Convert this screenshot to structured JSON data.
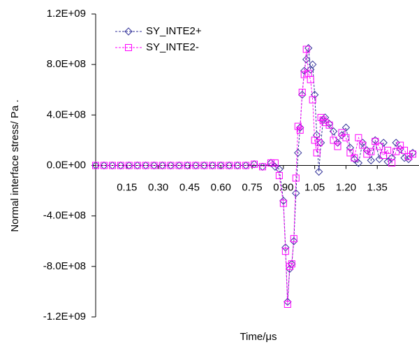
{
  "chart_data": {
    "type": "line",
    "y_label": "Normal interface stress/ Pa .",
    "x_label": "Time/μs",
    "legend": "upper left",
    "xlim": [
      0,
      1.55
    ],
    "xticks": [
      0.15,
      {
        "value": 0.3,
        "label": "0.30"
      },
      0.45,
      {
        "value": 0.6,
        "label": "0.60"
      },
      0.75,
      {
        "value": 0.9,
        "label": "0.90"
      },
      1.05,
      {
        "value": 1.2,
        "label": "1.20"
      },
      1.35
    ],
    "ylim": [
      -1200000000,
      1200000000
    ],
    "yticks": [
      {
        "value": -1200000000,
        "label": "-1.2E+09"
      },
      {
        "value": -800000000,
        "label": "-8.0E+08"
      },
      {
        "value": -400000000,
        "label": "-4.0E+08"
      },
      {
        "value": 0,
        "label": "0.0E+00"
      },
      {
        "value": 400000000,
        "label": "4.0E+08"
      },
      {
        "value": 800000000,
        "label": "8.0E+08"
      },
      {
        "value": 1200000000,
        "label": "1.2E+09"
      }
    ],
    "x": [
      0,
      0.04,
      0.08,
      0.12,
      0.16,
      0.2,
      0.24,
      0.28,
      0.32,
      0.36,
      0.4,
      0.44,
      0.48,
      0.52,
      0.56,
      0.6,
      0.64,
      0.68,
      0.72,
      0.76,
      0.8,
      0.84,
      0.86,
      0.88,
      0.9,
      0.91,
      0.92,
      0.93,
      0.94,
      0.95,
      0.96,
      0.97,
      0.98,
      0.99,
      1.0,
      1.01,
      1.02,
      1.03,
      1.04,
      1.05,
      1.06,
      1.07,
      1.08,
      1.09,
      1.1,
      1.12,
      1.14,
      1.16,
      1.18,
      1.2,
      1.22,
      1.24,
      1.26,
      1.28,
      1.3,
      1.32,
      1.34,
      1.36,
      1.38,
      1.4,
      1.42,
      1.44,
      1.46,
      1.48,
      1.5,
      1.52
    ],
    "series": [
      {
        "name": "SY_INTE2+",
        "color": "#333399",
        "marker": "diamond",
        "values": [
          0,
          0,
          0,
          0,
          0,
          0,
          0,
          0,
          0,
          0,
          0,
          0,
          0,
          0,
          0,
          0,
          0,
          0,
          0,
          10000000.0,
          -10000000.0,
          20000000.0,
          -10000000.0,
          -30000000.0,
          -280000000.0,
          -650000000.0,
          -1080000000.0,
          -820000000.0,
          -780000000.0,
          -600000000.0,
          -220000000.0,
          100000000.0,
          300000000.0,
          560000000.0,
          750000000.0,
          840000000.0,
          930000000.0,
          760000000.0,
          800000000.0,
          560000000.0,
          240000000.0,
          -50000000.0,
          180000000.0,
          360000000.0,
          380000000.0,
          330000000.0,
          270000000.0,
          180000000.0,
          240000000.0,
          300000000.0,
          140000000.0,
          50000000.0,
          20000000.0,
          180000000.0,
          120000000.0,
          40000000.0,
          200000000.0,
          50000000.0,
          180000000.0,
          30000000.0,
          60000000.0,
          180000000.0,
          130000000.0,
          60000000.0,
          50000000.0,
          100000000.0
        ]
      },
      {
        "name": "SY_INTE2-",
        "color": "#ff00ff",
        "marker": "square",
        "values": [
          0,
          0,
          0,
          0,
          0,
          0,
          0,
          0,
          0,
          0,
          0,
          0,
          0,
          0,
          0,
          0,
          0,
          0,
          0,
          10000000.0,
          -10000000.0,
          20000000.0,
          20000000.0,
          -80000000.0,
          -300000000.0,
          -680000000.0,
          -1100000000.0,
          -800000000.0,
          -780000000.0,
          -580000000.0,
          -100000000.0,
          310000000.0,
          280000000.0,
          580000000.0,
          720000000.0,
          920000000.0,
          730000000.0,
          680000000.0,
          520000000.0,
          200000000.0,
          100000000.0,
          180000000.0,
          380000000.0,
          360000000.0,
          340000000.0,
          320000000.0,
          200000000.0,
          150000000.0,
          260000000.0,
          220000000.0,
          100000000.0,
          60000000.0,
          220000000.0,
          160000000.0,
          90000000.0,
          110000000.0,
          190000000.0,
          150000000.0,
          80000000.0,
          120000000.0,
          20000000.0,
          110000000.0,
          160000000.0,
          120000000.0,
          70000000.0,
          90000000.0
        ]
      }
    ]
  }
}
